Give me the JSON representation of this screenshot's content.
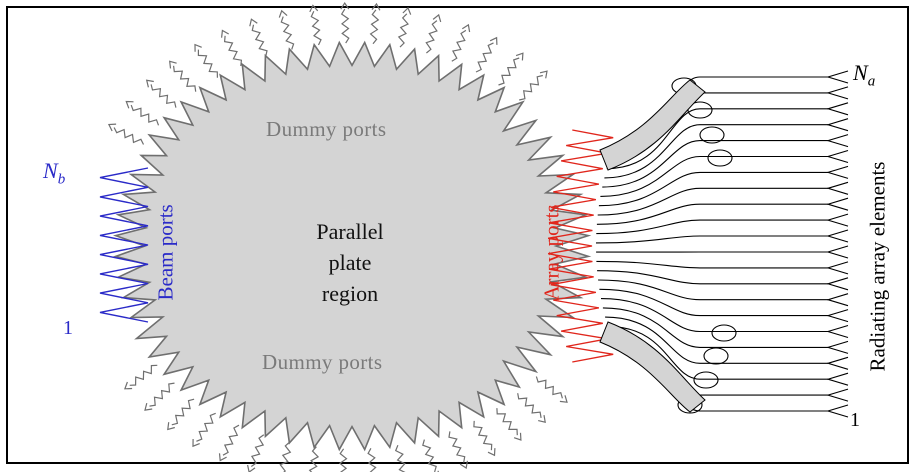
{
  "labels": {
    "dummy_ports_top": "Dummy ports",
    "dummy_ports_bottom": "Dummy ports",
    "center": [
      "Parallel",
      "plate",
      "region"
    ],
    "beam_ports": "Beam ports",
    "array_ports": "Array ports",
    "radiating": "Radiating array elements",
    "nb_letter": "N",
    "nb_sub": "b",
    "na_letter": "N",
    "na_sub": "a",
    "index_one_beam": "1",
    "index_one_array": "1"
  },
  "colors": {
    "region_fill": "#d4d4d4",
    "dummy_ports": "#6f6f6f",
    "beam_ports": "#2a2ac8",
    "array_ports": "#e0261c",
    "elements": "#000000"
  }
}
